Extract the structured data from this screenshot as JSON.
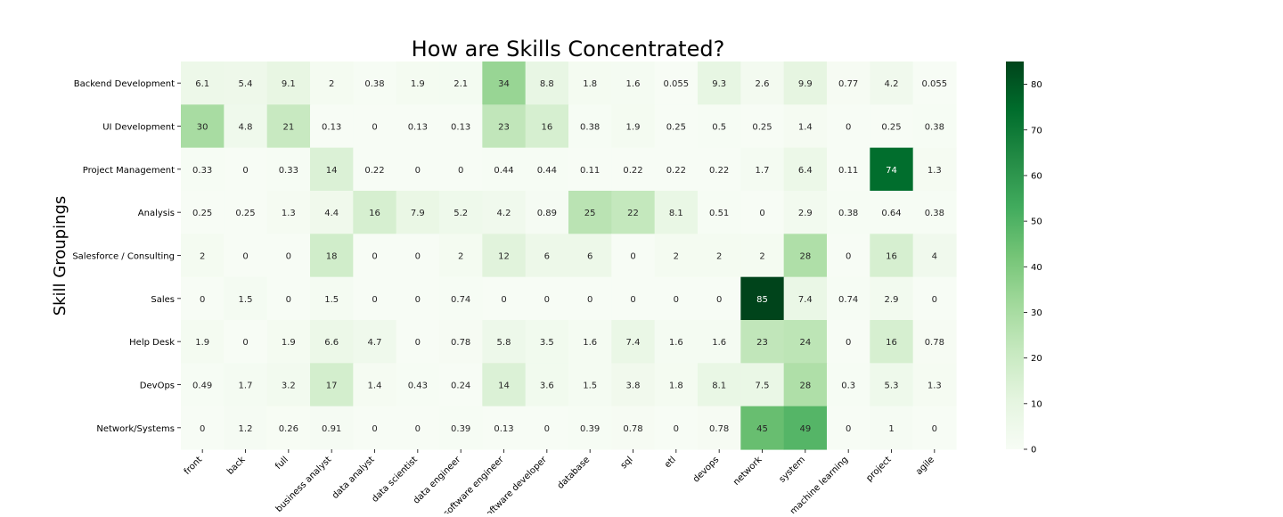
{
  "chart_data": {
    "type": "heatmap",
    "title": "How are Skills Concentrated?",
    "xlabel": "",
    "ylabel": "Skill Groupings",
    "x_categories": [
      "front",
      "back",
      "full",
      "business analyst",
      "data analyst",
      "data scientist",
      "data engineer",
      "software engineer",
      "software developer",
      "database",
      "sql",
      "etl",
      "devops",
      "network",
      "system",
      "machine learning",
      "project",
      "agile"
    ],
    "y_categories": [
      "Backend Development",
      "UI Development",
      "Project Management",
      "Analysis",
      "Salesforce / Consulting",
      "Sales",
      "Help Desk",
      "DevOps",
      "Network/Systems"
    ],
    "values": [
      [
        6.1,
        5.4,
        9.1,
        2,
        0.38,
        1.9,
        2.1,
        34,
        8.8,
        1.8,
        1.6,
        0.055,
        9.3,
        2.6,
        9.9,
        0.77,
        4.2,
        0.055
      ],
      [
        30,
        4.8,
        21,
        0.13,
        0,
        0.13,
        0.13,
        23,
        16,
        0.38,
        1.9,
        0.25,
        0.5,
        0.25,
        1.4,
        0,
        0.25,
        0.38
      ],
      [
        0.33,
        0,
        0.33,
        14,
        0.22,
        0,
        0,
        0.44,
        0.44,
        0.11,
        0.22,
        0.22,
        0.22,
        1.7,
        6.4,
        0.11,
        74,
        1.3
      ],
      [
        0.25,
        0.25,
        1.3,
        4.4,
        16,
        7.9,
        5.2,
        4.2,
        0.89,
        25,
        22,
        8.1,
        0.51,
        0,
        2.9,
        0.38,
        0.64,
        0.38
      ],
      [
        2,
        0,
        0,
        18,
        0,
        0,
        2,
        12,
        6,
        6,
        0,
        2,
        2,
        2,
        28,
        0,
        16,
        4
      ],
      [
        0,
        1.5,
        0,
        1.5,
        0,
        0,
        0.74,
        0,
        0,
        0,
        0,
        0,
        0,
        85,
        7.4,
        0.74,
        2.9,
        0
      ],
      [
        1.9,
        0,
        1.9,
        6.6,
        4.7,
        0,
        0.78,
        5.8,
        3.5,
        1.6,
        7.4,
        1.6,
        1.6,
        23,
        24,
        0,
        16,
        0.78
      ],
      [
        0.49,
        1.7,
        3.2,
        17,
        1.4,
        0.43,
        0.24,
        14,
        3.6,
        1.5,
        3.8,
        1.8,
        8.1,
        7.5,
        28,
        0.3,
        5.3,
        1.3
      ],
      [
        0,
        1.2,
        0.26,
        0.91,
        0,
        0,
        0.39,
        0.13,
        0,
        0.39,
        0.78,
        0,
        0.78,
        45,
        49,
        0,
        1,
        0
      ]
    ],
    "value_range": [
      0,
      85
    ],
    "colorbar_ticks": [
      0,
      10,
      20,
      30,
      40,
      50,
      60,
      70,
      80
    ],
    "colormap": "Greens",
    "colormap_stops": [
      "#f7fcf5",
      "#e5f5e0",
      "#c7e9c0",
      "#a1d99b",
      "#74c476",
      "#41ab5d",
      "#238b45",
      "#006d2c",
      "#00441b"
    ],
    "annotated": true,
    "grid": false,
    "legend": "colorbar right"
  }
}
